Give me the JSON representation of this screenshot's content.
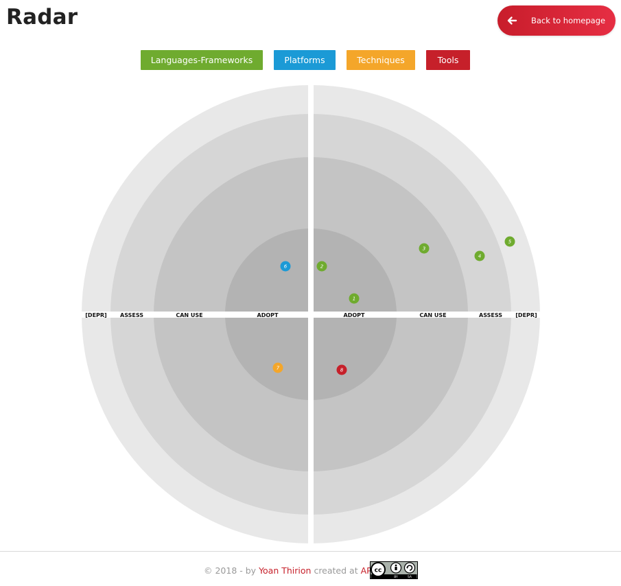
{
  "header": {
    "title": "Radar",
    "back_label": "Back to homepage"
  },
  "quadrants": [
    {
      "label": "Languages-Frameworks",
      "color": "#6fab2f"
    },
    {
      "label": "Platforms",
      "color": "#1b9ad6"
    },
    {
      "label": "Techniques",
      "color": "#f4a62a"
    },
    {
      "label": "Tools",
      "color": "#c6202a"
    }
  ],
  "rings": {
    "left": [
      "[DEPR]",
      "ASSESS",
      "CAN USE",
      "ADOPT"
    ],
    "right": [
      "ADOPT",
      "CAN USE",
      "ASSESS",
      "[DEPR]"
    ]
  },
  "ring_colors": [
    "#b3b3b3",
    "#c4c4c4",
    "#d6d6d6",
    "#e8e8e8"
  ],
  "blips": [
    {
      "number": "1",
      "color": "#6fab2f"
    },
    {
      "number": "2",
      "color": "#6fab2f"
    },
    {
      "number": "3",
      "color": "#6fab2f"
    },
    {
      "number": "4",
      "color": "#6fab2f"
    },
    {
      "number": "5",
      "color": "#6fab2f"
    },
    {
      "number": "6",
      "color": "#1b9ad6"
    },
    {
      "number": "7",
      "color": "#f4a62a"
    },
    {
      "number": "8",
      "color": "#c6202a"
    }
  ],
  "footer": {
    "prefix": "© 2018 - by ",
    "author": "Yoan Thirion",
    "middle": " created at ",
    "org": "AP",
    "license_icon": "cc-by-sa-icon",
    "license_text": "cc",
    "license_by": "BY",
    "license_sa": "SA"
  }
}
